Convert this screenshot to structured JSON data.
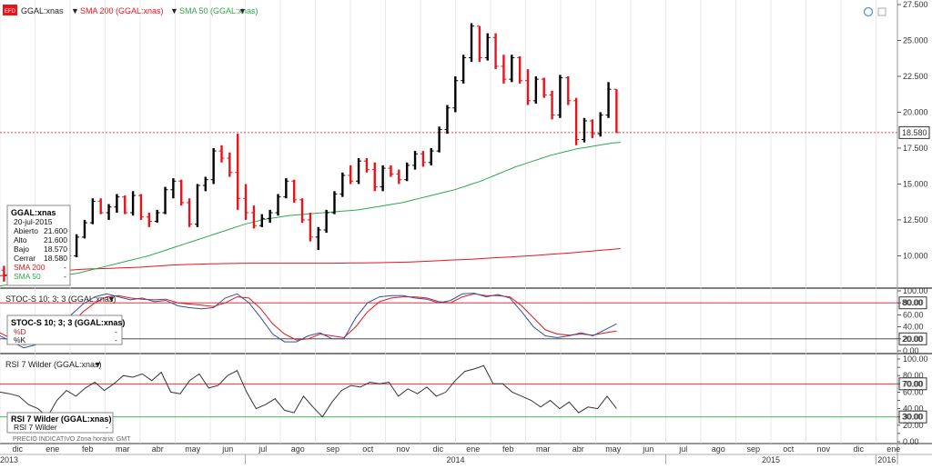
{
  "header": {
    "symbol_label": "GGAL:xnas",
    "sma200_label": "SMA 200 (GGAL:xnas)",
    "sma50_label": "SMA 50 (GGAL:xnas)",
    "logo_text": "EFD"
  },
  "colors": {
    "up": "#000000",
    "down": "#e8141c",
    "sma200": "#e8141c",
    "sma50": "#2ea84a",
    "stoch_d": "#e8141c",
    "stoch_k": "#34509a",
    "rsi": "#333333",
    "level_high": "#e8141c",
    "level_low": "#2ea84a",
    "grid": "#dddddd"
  },
  "info_box": {
    "title": "GGAL:xnas",
    "date": "20-jul-2015",
    "rows": [
      {
        "label": "Abierto",
        "value": "21.600"
      },
      {
        "label": "Alto",
        "value": "21.600"
      },
      {
        "label": "Bajo",
        "value": "18.570"
      },
      {
        "label": "Cerrar",
        "value": "18.580"
      }
    ],
    "sma200": {
      "label": "SMA 200",
      "value": "-"
    },
    "sma50": {
      "label": "SMA 50",
      "value": "-"
    }
  },
  "stoch_header": "STOC-S 10; 3; 3 (GGAL:xnas)",
  "stoch_box": {
    "title": "STOC-S 10; 3; 3 (GGAL:xnas)",
    "d_label": "%D",
    "k_label": "%K",
    "d_value": "-",
    "k_value": "-"
  },
  "rsi_header": "RSI 7 Wilder (GGAL:xnas)",
  "rsi_box": {
    "title": "RSI 7 Wilder (GGAL:xnas)",
    "line_label": "RSI 7 Wilder",
    "value": "-"
  },
  "footer": {
    "note": "PRECIO INDICATIVO   Zona horaria: GMT"
  },
  "chart_data": [
    {
      "type": "bar",
      "subtype": "ohlc",
      "series_name": "GGAL:xnas",
      "ylim": [
        8.0,
        27.5
      ],
      "yticks": [
        "27.500",
        "25.000",
        "22.500",
        "20.000",
        "17.500",
        "15.000",
        "12.500",
        "10.000"
      ],
      "ytick_values": [
        27.5,
        25.0,
        22.5,
        20.0,
        17.5,
        15.0,
        12.5,
        10.0
      ],
      "last_price": 18.58,
      "last_price_label": "18.580",
      "months": [
        "dic",
        "ene",
        "feb",
        "mar",
        "abr",
        "may",
        "jun",
        "jul",
        "ago",
        "sep",
        "oct",
        "nov",
        "dic",
        "ene",
        "feb",
        "mar",
        "abr",
        "may",
        "jun",
        "jul",
        "ago",
        "sep",
        "oct",
        "nov",
        "dic",
        "ene"
      ],
      "years": [
        {
          "label": "2013",
          "month_index": 0
        },
        {
          "label": "2014",
          "month_index": 7
        },
        {
          "label": "2015",
          "month_index": 19
        },
        {
          "label": "2016",
          "month_index": 25
        }
      ],
      "x_start_month": 0.0,
      "bar_step_months": 0.23,
      "ohlc": [
        [
          9.0,
          9.3,
          8.2,
          8.6
        ],
        [
          8.6,
          8.9,
          8.0,
          8.2
        ],
        [
          8.2,
          8.5,
          7.9,
          8.1
        ],
        [
          8.1,
          9.0,
          8.0,
          8.8
        ],
        [
          8.8,
          10.2,
          8.7,
          10.0
        ],
        [
          10.0,
          10.5,
          9.5,
          9.8
        ],
        [
          9.8,
          10.3,
          9.4,
          10.1
        ],
        [
          10.1,
          11.0,
          10.0,
          10.8
        ],
        [
          10.8,
          11.2,
          9.9,
          10.0
        ],
        [
          10.0,
          11.5,
          9.9,
          11.3
        ],
        [
          11.3,
          12.5,
          11.2,
          12.3
        ],
        [
          12.3,
          14.0,
          12.2,
          13.8
        ],
        [
          13.8,
          14.0,
          12.9,
          13.0
        ],
        [
          13.0,
          13.6,
          12.5,
          13.4
        ],
        [
          13.4,
          14.3,
          13.0,
          14.1
        ],
        [
          14.1,
          14.2,
          12.9,
          13.0
        ],
        [
          13.0,
          14.5,
          12.8,
          14.2
        ],
        [
          14.2,
          14.3,
          12.5,
          12.7
        ],
        [
          12.7,
          13.0,
          12.0,
          12.4
        ],
        [
          12.4,
          13.2,
          12.3,
          13.0
        ],
        [
          13.0,
          14.8,
          12.9,
          14.6
        ],
        [
          14.6,
          15.4,
          14.0,
          15.2
        ],
        [
          15.2,
          15.3,
          13.5,
          13.7
        ],
        [
          13.7,
          14.0,
          12.0,
          12.2
        ],
        [
          12.2,
          15.0,
          12.0,
          14.9
        ],
        [
          14.9,
          15.5,
          14.5,
          15.3
        ],
        [
          15.3,
          17.5,
          15.0,
          17.3
        ],
        [
          17.3,
          17.7,
          16.5,
          16.8
        ],
        [
          16.8,
          17.2,
          15.5,
          15.8
        ],
        [
          15.8,
          18.5,
          13.2,
          14.0
        ],
        [
          14.0,
          15.0,
          12.5,
          13.0
        ],
        [
          13.0,
          13.5,
          11.9,
          12.1
        ],
        [
          12.1,
          12.9,
          12.0,
          12.6
        ],
        [
          12.6,
          13.2,
          12.3,
          13.0
        ],
        [
          13.0,
          14.3,
          12.8,
          14.1
        ],
        [
          14.1,
          15.4,
          14.0,
          15.2
        ],
        [
          15.2,
          15.3,
          13.7,
          13.9
        ],
        [
          13.9,
          14.0,
          12.3,
          12.5
        ],
        [
          12.5,
          13.0,
          11.0,
          11.3
        ],
        [
          11.3,
          12.0,
          10.4,
          11.8
        ],
        [
          11.8,
          13.2,
          11.6,
          13.0
        ],
        [
          13.0,
          14.5,
          12.9,
          14.3
        ],
        [
          14.3,
          15.8,
          14.1,
          15.6
        ],
        [
          15.6,
          16.3,
          15.0,
          15.2
        ],
        [
          15.2,
          16.8,
          15.0,
          16.6
        ],
        [
          16.6,
          16.8,
          15.8,
          16.0
        ],
        [
          16.0,
          16.5,
          14.5,
          14.8
        ],
        [
          14.8,
          16.3,
          14.5,
          16.1
        ],
        [
          16.1,
          16.3,
          15.5,
          15.7
        ],
        [
          15.7,
          16.0,
          15.0,
          15.3
        ],
        [
          15.3,
          16.5,
          15.2,
          16.3
        ],
        [
          16.3,
          17.3,
          16.0,
          17.1
        ],
        [
          17.1,
          17.3,
          16.2,
          16.5
        ],
        [
          16.5,
          17.5,
          16.3,
          17.3
        ],
        [
          17.3,
          19.0,
          17.2,
          18.8
        ],
        [
          18.8,
          20.5,
          18.5,
          20.3
        ],
        [
          20.3,
          22.5,
          20.0,
          22.2
        ],
        [
          22.2,
          24.0,
          22.0,
          23.8
        ],
        [
          23.8,
          26.2,
          23.5,
          26.0
        ],
        [
          26.0,
          26.0,
          23.5,
          23.8
        ],
        [
          23.8,
          25.5,
          23.6,
          25.2
        ],
        [
          25.2,
          25.5,
          23.0,
          23.2
        ],
        [
          23.2,
          24.0,
          22.0,
          22.3
        ],
        [
          22.3,
          24.0,
          22.1,
          23.8
        ],
        [
          23.8,
          23.9,
          22.0,
          22.2
        ],
        [
          22.2,
          23.0,
          20.5,
          20.8
        ],
        [
          20.8,
          22.5,
          20.6,
          22.3
        ],
        [
          22.3,
          22.4,
          21.0,
          21.2
        ],
        [
          21.2,
          21.5,
          19.5,
          19.8
        ],
        [
          19.8,
          22.6,
          19.6,
          22.4
        ],
        [
          22.4,
          22.5,
          20.5,
          20.8
        ],
        [
          20.8,
          21.0,
          17.7,
          18.1
        ],
        [
          18.1,
          19.6,
          17.9,
          19.4
        ],
        [
          19.4,
          19.5,
          18.2,
          18.5
        ],
        [
          18.5,
          20.0,
          18.3,
          19.8
        ],
        [
          19.8,
          22.1,
          19.6,
          21.6
        ],
        [
          21.6,
          21.6,
          18.57,
          18.58
        ]
      ],
      "series": [
        {
          "name": "SMA 200",
          "values": [
            8.6,
            8.7,
            8.75,
            8.8,
            8.85,
            8.9,
            8.95,
            9.0,
            9.05,
            9.08,
            9.1,
            9.12,
            9.15,
            9.18,
            9.2,
            9.25,
            9.3,
            9.35,
            9.38,
            9.4,
            9.42,
            9.44,
            9.45,
            9.46,
            9.47,
            9.48,
            9.48,
            9.48,
            9.48,
            9.48,
            9.48,
            9.48,
            9.48,
            9.48,
            9.49,
            9.5,
            9.5,
            9.51,
            9.52,
            9.53,
            9.55,
            9.57,
            9.6,
            9.63,
            9.66,
            9.7,
            9.73,
            9.76,
            9.8,
            9.84,
            9.88,
            9.92,
            9.96,
            10.0,
            10.05,
            10.1,
            10.15,
            10.2,
            10.26,
            10.32,
            10.38,
            10.44,
            10.5
          ]
        },
        {
          "name": "SMA 50",
          "values": [
            7.9,
            8.0,
            8.1,
            8.2,
            8.3,
            8.4,
            8.5,
            8.6,
            8.7,
            8.8,
            8.95,
            9.1,
            9.25,
            9.4,
            9.55,
            9.7,
            9.85,
            10.0,
            10.2,
            10.4,
            10.6,
            10.8,
            11.0,
            11.2,
            11.4,
            11.6,
            11.8,
            12.0,
            12.2,
            12.35,
            12.5,
            12.6,
            12.7,
            12.8,
            12.85,
            12.9,
            12.95,
            13.0,
            13.05,
            13.1,
            13.15,
            13.2,
            13.3,
            13.4,
            13.5,
            13.6,
            13.7,
            13.85,
            14.0,
            14.15,
            14.3,
            14.45,
            14.6,
            14.8,
            15.0,
            15.2,
            15.45,
            15.7,
            15.95,
            16.2,
            16.4,
            16.6,
            16.8,
            17.0,
            17.15,
            17.3,
            17.45,
            17.55,
            17.65,
            17.75,
            17.85,
            17.9
          ]
        }
      ]
    },
    {
      "type": "line",
      "title": "STOC-S 10; 3; 3 (GGAL:xnas)",
      "ylim": [
        0,
        100
      ],
      "yticks": [
        "100.00",
        "80.00",
        "60.00",
        "40.00",
        "20.00",
        "0.00"
      ],
      "ytick_values": [
        100,
        80,
        60,
        40,
        20,
        0
      ],
      "levels": [
        {
          "value": 80,
          "label": "80.00"
        },
        {
          "value": 20,
          "label": "20.00"
        }
      ],
      "series": [
        {
          "name": "%D",
          "values": [
            30,
            20,
            10,
            12,
            15,
            25,
            45,
            65,
            80,
            90,
            92,
            88,
            86,
            85,
            86,
            80,
            78,
            76,
            74,
            80,
            90,
            88,
            70,
            45,
            28,
            18,
            20,
            28,
            25,
            22,
            40,
            65,
            82,
            88,
            90,
            90,
            88,
            82,
            80,
            90,
            95,
            92,
            92,
            90,
            75,
            55,
            35,
            28,
            26,
            28,
            26,
            30,
            33
          ]
        },
        {
          "name": "%K",
          "values": [
            25,
            15,
            5,
            10,
            20,
            35,
            60,
            78,
            90,
            95,
            90,
            85,
            88,
            82,
            84,
            75,
            72,
            70,
            72,
            88,
            95,
            80,
            55,
            28,
            15,
            15,
            25,
            30,
            20,
            20,
            55,
            80,
            90,
            92,
            92,
            88,
            86,
            80,
            84,
            95,
            96,
            90,
            94,
            88,
            65,
            40,
            25,
            22,
            25,
            30,
            25,
            35,
            45
          ]
        }
      ]
    },
    {
      "type": "line",
      "title": "RSI 7 Wilder (GGAL:xnas)",
      "ylim": [
        0,
        100
      ],
      "yticks": [
        "100.00",
        "90.00",
        "80.00",
        "70.00",
        "60.00",
        "50.00",
        "40.00",
        "30.00",
        "20.00",
        "10.00",
        "0.00"
      ],
      "ytick_values": [
        100,
        90,
        80,
        70,
        60,
        50,
        40,
        30,
        20,
        10,
        0
      ],
      "levels": [
        {
          "value": 70,
          "label": "70.00"
        },
        {
          "value": 30,
          "label": "30.00"
        }
      ],
      "series": [
        {
          "name": "RSI 7 Wilder",
          "values": [
            60,
            58,
            55,
            45,
            40,
            30,
            50,
            62,
            55,
            65,
            72,
            62,
            70,
            80,
            78,
            82,
            74,
            84,
            60,
            58,
            74,
            82,
            65,
            68,
            80,
            86,
            60,
            40,
            45,
            52,
            38,
            35,
            55,
            42,
            30,
            48,
            62,
            68,
            66,
            72,
            70,
            72,
            55,
            64,
            58,
            66,
            55,
            60,
            74,
            85,
            88,
            92,
            70,
            70,
            60,
            55,
            50,
            42,
            50,
            40,
            48,
            35,
            42,
            40,
            55,
            40
          ]
        }
      ]
    }
  ]
}
